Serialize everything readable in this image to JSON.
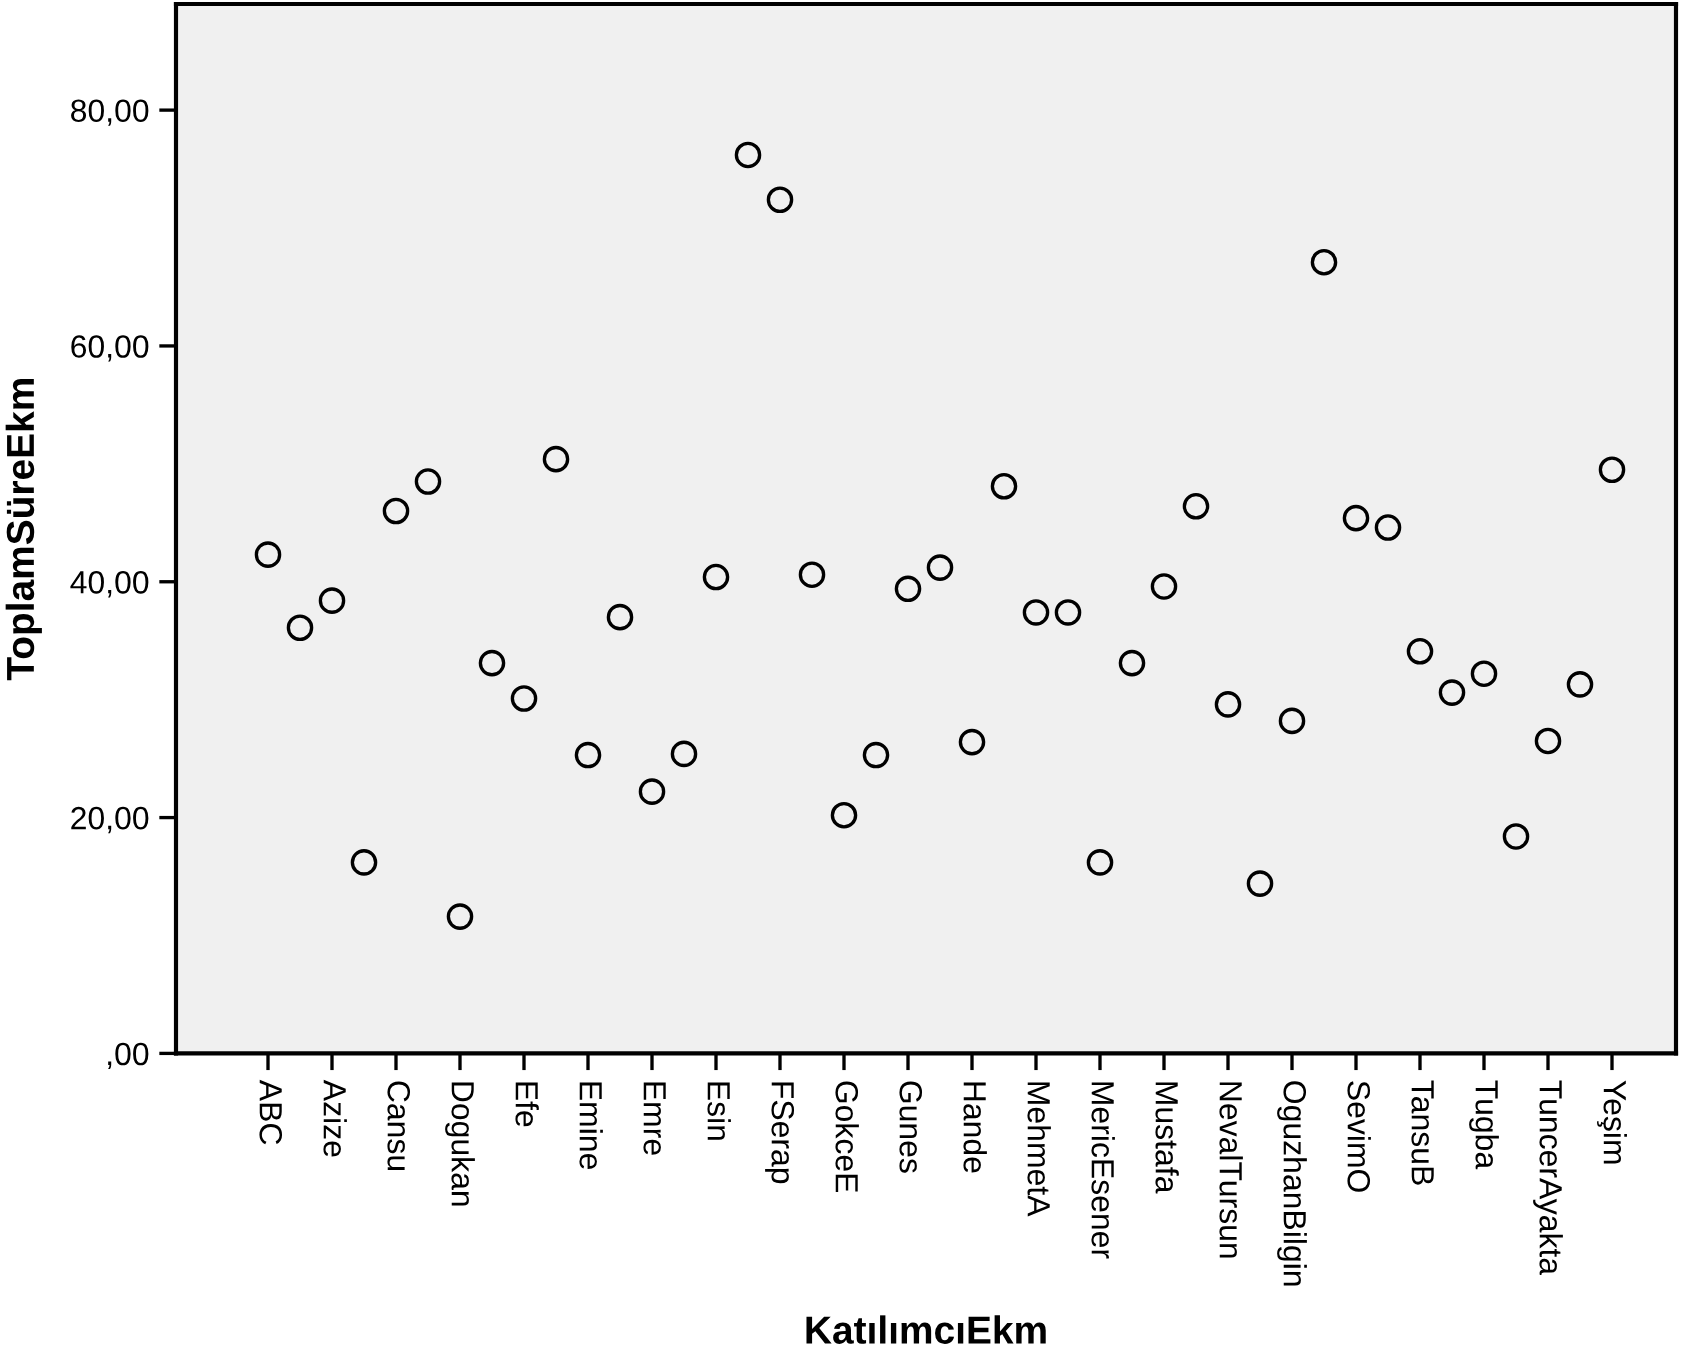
{
  "chart_data": {
    "type": "scatter",
    "xlabel": "KatılımcıEkm",
    "ylabel": "ToplamSüreEkm",
    "categories": [
      "ABC",
      null,
      "Azize",
      null,
      "Cansu",
      null,
      "Dogukan",
      null,
      "Efe",
      null,
      "Emine",
      null,
      "Emre",
      null,
      "Esin",
      null,
      "FSerap",
      null,
      "GokceE",
      null,
      "Gunes",
      null,
      "Hande",
      null,
      "MehmetA",
      null,
      "MericEsener",
      null,
      "Mustafa",
      null,
      "NevalTursun",
      null,
      "OguzhanBilgin",
      null,
      "SevimO",
      null,
      "TansuB",
      null,
      "Tugba",
      null,
      "TuncerAyakta",
      null,
      "Yeşim"
    ],
    "values": [
      42.3,
      36.1,
      38.4,
      16.2,
      46.0,
      48.5,
      11.6,
      33.1,
      30.1,
      50.4,
      25.3,
      37.0,
      22.2,
      25.4,
      40.4,
      76.2,
      72.4,
      40.6,
      20.2,
      25.3,
      39.4,
      41.2,
      26.4,
      48.1,
      37.4,
      37.4,
      16.2,
      33.1,
      39.6,
      46.4,
      29.6,
      14.4,
      28.2,
      67.1,
      45.4,
      44.6,
      34.1,
      30.6,
      32.2,
      18.4,
      26.5,
      31.3,
      49.5
    ],
    "color": "#000000",
    "marker": "circle",
    "grid": false,
    "legend": false,
    "ylim": [
      0,
      89
    ],
    "yticks": [
      {
        "value": 0,
        "label": ",00"
      },
      {
        "value": 20,
        "label": "20,00"
      },
      {
        "value": 40,
        "label": "40,00"
      },
      {
        "value": 60,
        "label": "60,00"
      },
      {
        "value": 80,
        "label": "80,00"
      }
    ]
  }
}
